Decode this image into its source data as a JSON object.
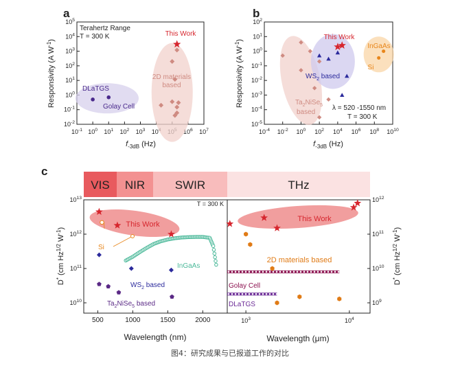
{
  "colors": {
    "this_work": "#d6262e",
    "two_d": "#cf8b82",
    "two_d_fill": "#f1d2cc",
    "dla": "#4a2a8c",
    "dla_fill": "#d7d0ec",
    "ws2": "#2b2a9c",
    "ws2_fill": "#cfc9ee",
    "ingaas": "#e8861b",
    "ingaas_fill": "#f9d6a7",
    "ingaas_curve": "#4cb99a",
    "ta2": "#5b2a86",
    "orange": "#e07b16",
    "golay_bar": "#8c1250",
    "dla_bar": "#6b2a96"
  },
  "panel_labels": {
    "a": "a",
    "b": "b",
    "c": "c"
  },
  "chart_data": [
    {
      "id": "a",
      "type": "scatter",
      "xlabel": "f-3dB (Hz)",
      "ylabel": "Responsivity (A W-1)",
      "xscale": "log",
      "yscale": "log",
      "xlim_exp": [
        -1,
        7
      ],
      "ylim_exp": [
        -2,
        5
      ],
      "x_ticks": [
        "10-1",
        "100",
        "101",
        "102",
        "103",
        "104",
        "105",
        "106",
        "107"
      ],
      "y_ticks": [
        "10-2",
        "10-1",
        "100",
        "101",
        "102",
        "103",
        "104",
        "105"
      ],
      "header_lines": [
        "Terahertz Range",
        "T = 300 K"
      ],
      "annotations": {
        "this_work": "This Work",
        "two_d_line1": "2D materials",
        "two_d_line2": "based",
        "dlatgs": "DLaTGS",
        "golay": "Golay Cell"
      },
      "series": [
        {
          "name": "This Work",
          "marker": "star",
          "x": [
            200000
          ],
          "y": [
            3000
          ]
        },
        {
          "name": "2D materials based",
          "marker": "diamond",
          "x": [
            200000,
            100000,
            150000,
            20000,
            100000,
            200000,
            250000,
            150000,
            200000
          ],
          "y": [
            1200,
            200,
            12,
            0.2,
            0.35,
            0.15,
            0.3,
            0.04,
            0.06
          ]
        },
        {
          "name": "DLaTGS",
          "marker": "circle",
          "x": [
            1
          ],
          "y": [
            0.5
          ]
        },
        {
          "name": "Golay Cell",
          "marker": "circle",
          "x": [
            10
          ],
          "y": [
            0.7
          ]
        }
      ]
    },
    {
      "id": "b",
      "type": "scatter",
      "xlabel": "f-3dB (Hz)",
      "ylabel": "Responsivity (A W-1)",
      "xscale": "log",
      "yscale": "log",
      "xlim_exp": [
        -4,
        10
      ],
      "ylim_exp": [
        -5,
        2
      ],
      "x_ticks": [
        "10-4",
        "10-2",
        "100",
        "102",
        "104",
        "106",
        "108",
        "1010"
      ],
      "y_ticks": [
        "10-5",
        "10-4",
        "10-3",
        "10-2",
        "10-1",
        "100",
        "101",
        "102"
      ],
      "header_lines": [
        "λ = 520 -1550 nm",
        "T = 300 K"
      ],
      "annotations": {
        "this_work": "This Work",
        "ws2": "WS2 based",
        "ta2_line1": "Ta2NiSe5",
        "ta2_line2": "based",
        "ingaas": "InGaAs",
        "si": "Si"
      },
      "series": [
        {
          "name": "This Work",
          "marker": "star",
          "x": [
            10000,
            30000
          ],
          "y": [
            2,
            2.5
          ]
        },
        {
          "name": "Ta2NiSe5 based",
          "marker": "diamond",
          "x": [
            0.01,
            1,
            10,
            1,
            100,
            30,
            1000,
            100
          ],
          "y": [
            0.5,
            4,
            1,
            0.05,
            0.2,
            0.003,
            0.0005,
            3e-05
          ]
        },
        {
          "name": "WS2 based",
          "marker": "triangle",
          "x": [
            100,
            10000,
            1000,
            100000,
            30000
          ],
          "y": [
            0.5,
            0.8,
            0.3,
            0.02,
            0.001
          ]
        },
        {
          "name": "InGaAs",
          "marker": "circle",
          "x": [
            1000000000
          ],
          "y": [
            1
          ]
        },
        {
          "name": "Si",
          "marker": "circle",
          "x": [
            300000000
          ],
          "y": [
            0.35
          ]
        }
      ]
    },
    {
      "id": "c",
      "type": "scatter",
      "bands": [
        "VIS",
        "NIR",
        "SWIR",
        "THz"
      ],
      "header_line": "T = 300 K",
      "left": {
        "xlabel": "Wavelength (nm)",
        "ylabel": "D* (cm Hz1/2 W-1)",
        "xlim": [
          300,
          2350
        ],
        "ylim_exp": [
          9.7,
          13
        ],
        "x_ticks": [
          500,
          1000,
          1500,
          2000
        ],
        "y_ticks": [
          "1010",
          "1011",
          "1012",
          "1013"
        ],
        "annotations": {
          "this_work": "This Work",
          "si": "Si",
          "ingaas": "InGaAs",
          "ws2": "WS2 based",
          "ta2": "Ta2NiSe5 based"
        },
        "series": [
          {
            "name": "This Work",
            "marker": "star",
            "x": [
              520,
              780,
              1550
            ],
            "y": [
              4500000000000.0,
              1800000000000.0,
              1000000000000.0
            ]
          },
          {
            "name": "Si",
            "marker": "open-circle",
            "x": [
              560
            ],
            "y": [
              2200000000000.0
            ]
          },
          {
            "name": "WS2 based",
            "marker": "diamond",
            "x": [
              520,
              980,
              1550
            ],
            "y": [
              250000000000.0,
              100000000000.0,
              90000000000.0
            ]
          },
          {
            "name": "Ta2NiSe5 based",
            "marker": "pentagon",
            "x": [
              520,
              650,
              800,
              1560
            ],
            "y": [
              35000000000.0,
              30000000000.0,
              20000000000.0,
              15000000000.0
            ]
          },
          {
            "name": "InGaAs",
            "marker": "open-circle-curve",
            "x": [
              900,
              1000,
              1100,
              1200,
              1300,
              1400,
              1500,
              1600,
              1700,
              1800,
              1900,
              2000,
              2100,
              2150,
              2200
            ],
            "y": [
              170000000000.0,
              220000000000.0,
              300000000000.0,
              400000000000.0,
              520000000000.0,
              620000000000.0,
              700000000000.0,
              760000000000.0,
              800000000000.0,
              820000000000.0,
              830000000000.0,
              830000000000.0,
              780000000000.0,
              450000000000.0,
              100000000000.0
            ]
          }
        ]
      },
      "right": {
        "xlabel": "Wavelength (μm)",
        "ylabel": "D* (cm Hz1/2 W-1)",
        "xscale": "log",
        "xlim_exp": [
          2.82,
          4.2
        ],
        "ylim_exp": [
          8.7,
          12
        ],
        "x_ticks": [
          "103",
          "104"
        ],
        "y_ticks": [
          "109",
          "1010",
          "1011",
          "1012"
        ],
        "annotations": {
          "this_work": "This Work",
          "two_d": "2D materials based",
          "golay": "Golay Cell",
          "dla": "DLaTGS"
        },
        "series": [
          {
            "name": "This Work",
            "marker": "star",
            "x": [
              700,
              1500,
              2000,
              11000,
              12000
            ],
            "y": [
              200000000000.0,
              300000000000.0,
              150000000000.0,
              600000000000.0,
              800000000000.0
            ]
          },
          {
            "name": "2D materials based",
            "marker": "hexagon",
            "x": [
              1000,
              1100,
              1800,
              2000,
              3300,
              8000
            ],
            "y": [
              100000000000.0,
              50000000000.0,
              10000000000.0,
              1000000000.0,
              1500000000.0,
              1300000000.0
            ]
          },
          {
            "name": "Golay Cell",
            "marker": "bar",
            "x_range": [
              660,
              8000
            ],
            "y": [
              8000000000.0
            ]
          },
          {
            "name": "DLaTGS",
            "marker": "bar",
            "x_range": [
              660,
              2000
            ],
            "y": [
              1800000000.0
            ]
          }
        ]
      }
    }
  ],
  "caption": "图4：研究成果与已报道工作的对比"
}
